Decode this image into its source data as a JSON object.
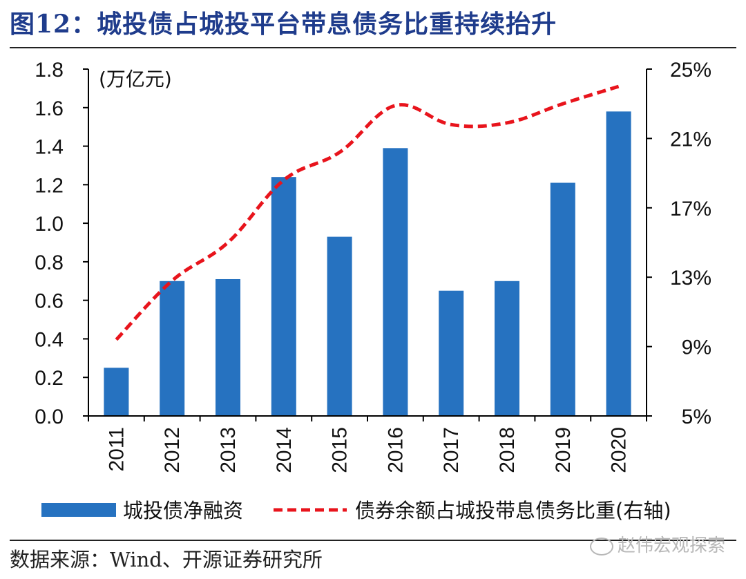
{
  "figure": {
    "title": "图12：城投债占城投平台带息债务比重持续抬升",
    "source": "数据来源：Wind、开源证券研究所",
    "watermark": "赵伟宏观探索"
  },
  "chart_data": {
    "type": "bar",
    "categories": [
      "2011",
      "2012",
      "2013",
      "2014",
      "2015",
      "2016",
      "2017",
      "2018",
      "2019",
      "2020"
    ],
    "unit_label": "(万亿元)",
    "y_left": {
      "min": 0,
      "max": 1.8,
      "ticks": [
        "0.0",
        "0.2",
        "0.4",
        "0.6",
        "0.8",
        "1.0",
        "1.2",
        "1.4",
        "1.6",
        "1.8"
      ]
    },
    "y_right": {
      "min": 5,
      "max": 25,
      "ticks": [
        "5%",
        "9%",
        "13%",
        "17%",
        "21%",
        "25%"
      ]
    },
    "series": [
      {
        "name": "城投债净融资",
        "type": "bar",
        "axis": "left",
        "color": "#2672c0",
        "values": [
          0.25,
          0.7,
          0.71,
          1.24,
          0.93,
          1.39,
          0.65,
          0.7,
          1.21,
          1.58
        ]
      },
      {
        "name": "债券余额占城投带息债务比重(右轴)",
        "type": "line",
        "style": "dashed",
        "axis": "right",
        "color": "#e8141c",
        "values": [
          9.4,
          12.8,
          15.0,
          18.6,
          20.2,
          22.9,
          21.8,
          21.9,
          23.0,
          24.0
        ]
      }
    ],
    "grid": false,
    "legend_position": "bottom"
  }
}
